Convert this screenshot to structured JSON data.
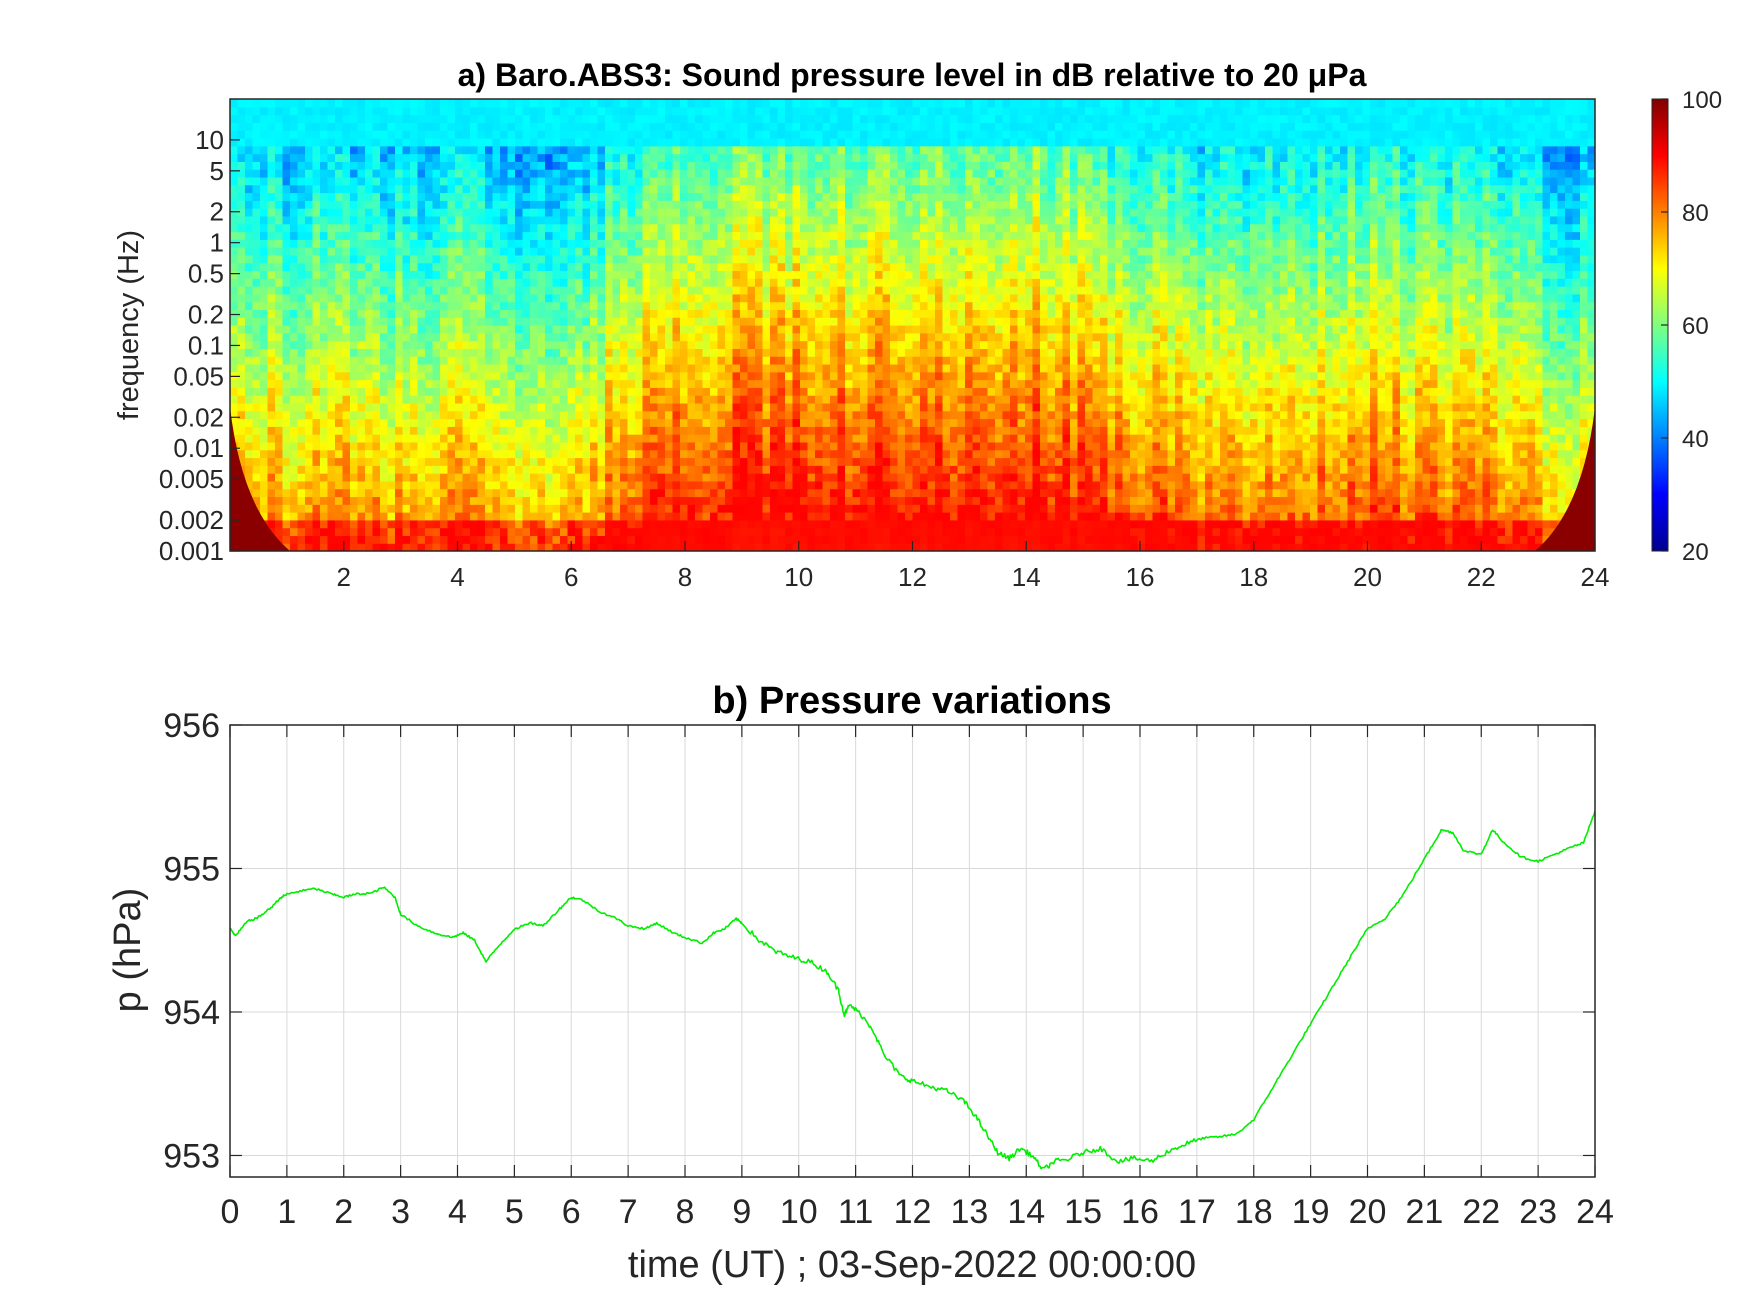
{
  "chart_data": [
    {
      "type": "heatmap",
      "title": "a) Baro.ABS3: Sound pressure level in dB relative to 20 μPa",
      "ylabel": "frequency (Hz)",
      "xlabel": "",
      "yscale": "log",
      "xlim": [
        0,
        24
      ],
      "ylim": [
        0.001,
        25
      ],
      "x_ticks": [
        2,
        4,
        6,
        8,
        10,
        12,
        14,
        16,
        18,
        20,
        22,
        24
      ],
      "y_ticks": [
        0.001,
        0.002,
        0.005,
        0.01,
        0.02,
        0.05,
        0.1,
        0.2,
        0.5,
        1,
        2,
        5,
        10
      ],
      "y_tick_labels": [
        "0.001",
        "0.002",
        "0.005",
        "0.01",
        "0.02",
        "0.05",
        "0.1",
        "0.2",
        "0.5",
        "1",
        "2",
        "5",
        "10"
      ],
      "colorbar": {
        "min": 20,
        "max": 100,
        "ticks": [
          20,
          40,
          60,
          80,
          100
        ],
        "colormap": "jet"
      },
      "intensity_profile": {
        "x": [
          0,
          1,
          2,
          3,
          4,
          5,
          6,
          7,
          8,
          9,
          10,
          11,
          12,
          13,
          14,
          15,
          16,
          17,
          18,
          19,
          20,
          21,
          22,
          23,
          24
        ],
        "upper_extent_log10_hz": [
          -1.3,
          -1.4,
          -1.2,
          -1.4,
          -1.3,
          -1.5,
          -1.7,
          -0.6,
          -0.2,
          0.0,
          0.1,
          0.0,
          0.1,
          -0.1,
          0.2,
          -0.3,
          -0.6,
          -0.9,
          -1.0,
          -0.8,
          -0.5,
          -0.9,
          -0.9,
          -1.4,
          -1.8
        ]
      }
    },
    {
      "type": "line",
      "title": "b) Pressure variations",
      "xlabel": "time (UT) ; 03-Sep-2022 00:00:00",
      "ylabel": "p (hPa)",
      "xlim": [
        0,
        24
      ],
      "ylim": [
        952.85,
        956
      ],
      "x_ticks": [
        0,
        1,
        2,
        3,
        4,
        5,
        6,
        7,
        8,
        9,
        10,
        11,
        12,
        13,
        14,
        15,
        16,
        17,
        18,
        19,
        20,
        21,
        22,
        23,
        24
      ],
      "y_ticks": [
        953,
        954,
        955,
        956
      ],
      "grid": true,
      "series": [
        {
          "color": "#00ee00",
          "x": [
            0,
            0.1,
            0.3,
            0.5,
            0.7,
            0.9,
            1.0,
            1.2,
            1.5,
            1.8,
            2.0,
            2.2,
            2.5,
            2.7,
            2.9,
            3.0,
            3.3,
            3.6,
            3.9,
            4.1,
            4.3,
            4.5,
            4.7,
            5.0,
            5.3,
            5.5,
            5.8,
            6.0,
            6.2,
            6.5,
            6.8,
            7.0,
            7.3,
            7.5,
            7.8,
            8.0,
            8.3,
            8.5,
            8.7,
            8.9,
            9.0,
            9.3,
            9.6,
            9.9,
            10.2,
            10.5,
            10.7,
            10.8,
            10.9,
            11.1,
            11.3,
            11.5,
            11.8,
            12.0,
            12.3,
            12.6,
            12.9,
            13.1,
            13.3,
            13.5,
            13.7,
            13.9,
            14.1,
            14.3,
            14.5,
            14.7,
            15.0,
            15.3,
            15.6,
            15.9,
            16.2,
            16.5,
            16.8,
            17.1,
            17.4,
            17.7,
            18.0,
            18.3,
            18.6,
            18.9,
            19.2,
            19.5,
            19.8,
            20.0,
            20.3,
            20.6,
            20.9,
            21.2,
            21.3,
            21.5,
            21.7,
            22.0,
            22.2,
            22.4,
            22.7,
            23.0,
            23.3,
            23.6,
            23.8,
            24.0
          ],
          "y": [
            954.58,
            954.53,
            954.63,
            954.66,
            954.72,
            954.8,
            954.82,
            954.84,
            954.86,
            954.82,
            954.8,
            954.82,
            954.83,
            954.87,
            954.8,
            954.68,
            954.6,
            954.55,
            954.52,
            954.55,
            954.5,
            954.35,
            954.45,
            954.58,
            954.62,
            954.6,
            954.72,
            954.8,
            954.78,
            954.7,
            954.65,
            954.6,
            954.58,
            954.62,
            954.55,
            954.52,
            954.48,
            954.55,
            954.58,
            954.65,
            954.62,
            954.5,
            954.42,
            954.38,
            954.35,
            954.28,
            954.15,
            953.98,
            954.05,
            953.98,
            953.88,
            953.7,
            953.55,
            953.52,
            953.48,
            953.45,
            953.38,
            953.28,
            953.15,
            953.02,
            952.98,
            953.05,
            953.0,
            952.9,
            952.96,
            952.97,
            953.02,
            953.05,
            952.96,
            952.98,
            952.96,
            953.03,
            953.08,
            953.12,
            953.13,
            953.15,
            953.25,
            953.45,
            953.65,
            953.85,
            954.05,
            954.25,
            954.45,
            954.58,
            954.65,
            954.8,
            955.0,
            955.2,
            955.27,
            955.25,
            955.12,
            955.1,
            955.27,
            955.18,
            955.08,
            955.05,
            955.1,
            955.15,
            955.18,
            955.4
          ]
        }
      ]
    }
  ]
}
